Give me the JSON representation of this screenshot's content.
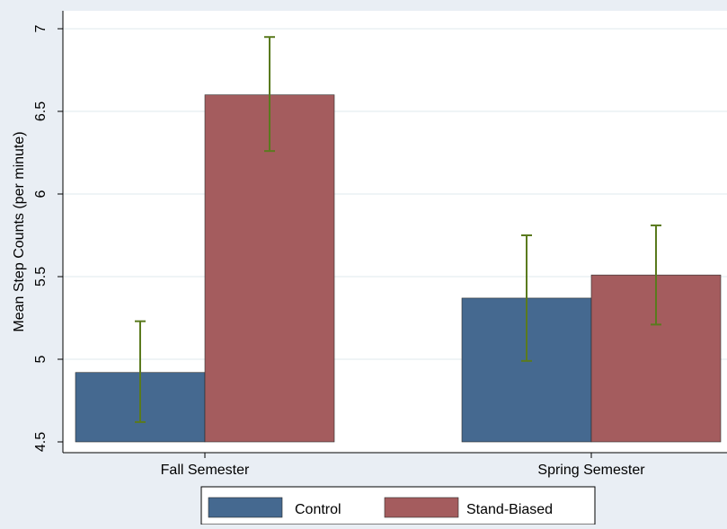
{
  "chart_data": {
    "type": "bar",
    "title": "",
    "xlabel": "",
    "ylabel": "Mean Step Counts (per minute)",
    "ylim": [
      4.5,
      7
    ],
    "yticks": [
      "4.5",
      "5",
      "5.5",
      "6",
      "6.5",
      "7"
    ],
    "grid": true,
    "legend_position": "bottom",
    "categories": [
      "Fall Semester",
      "Spring Semester"
    ],
    "series": [
      {
        "name": "Control",
        "color": "#456990",
        "values": [
          4.92,
          5.37
        ],
        "error_low": [
          4.62,
          4.99
        ],
        "error_high": [
          5.23,
          5.75
        ]
      },
      {
        "name": "Stand-Biased",
        "color": "#a45c5e",
        "values": [
          6.6,
          5.51
        ],
        "error_low": [
          6.26,
          5.21
        ],
        "error_high": [
          6.95,
          5.81
        ]
      }
    ],
    "error_bar_color": "#5a7a1e"
  }
}
